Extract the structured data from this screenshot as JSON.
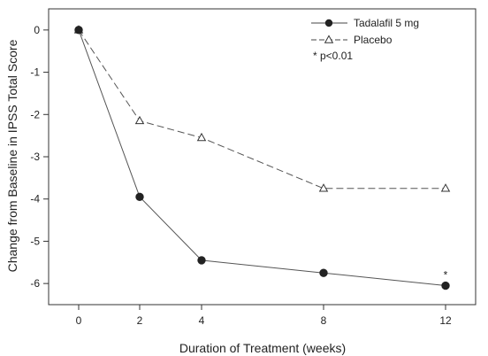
{
  "chart_data": {
    "type": "line",
    "x": [
      0,
      2,
      4,
      8,
      12
    ],
    "x_tick_labels": [
      "0",
      "2",
      "4",
      "8",
      "12"
    ],
    "series": [
      {
        "name": "Tadalafil 5 mg",
        "marker": "filled-circle",
        "line_style": "solid",
        "color": "#555555",
        "values": [
          0,
          -3.95,
          -5.45,
          -5.75,
          -6.05
        ]
      },
      {
        "name": "Placebo",
        "marker": "open-triangle",
        "line_style": "dashed",
        "color": "#555555",
        "values": [
          0,
          -2.15,
          -2.55,
          -3.75,
          -3.75
        ]
      }
    ],
    "xlabel": "Duration of Treatment (weeks)",
    "ylabel": "Change from Baseline in IPSS Total Score",
    "ylim": [
      -6.5,
      0.5
    ],
    "y_ticks": [
      0,
      -1,
      -2,
      -3,
      -4,
      -5,
      -6
    ],
    "y_tick_labels": [
      "0",
      "-1",
      "-2",
      "-3",
      "-4",
      "-5",
      "-6"
    ],
    "grid": false,
    "legend_position": "top-right",
    "annotations": [
      {
        "text": "* p<0.01",
        "location": "legend"
      },
      {
        "text": "*",
        "series": "Tadalafil 5 mg",
        "x": 12
      }
    ]
  }
}
